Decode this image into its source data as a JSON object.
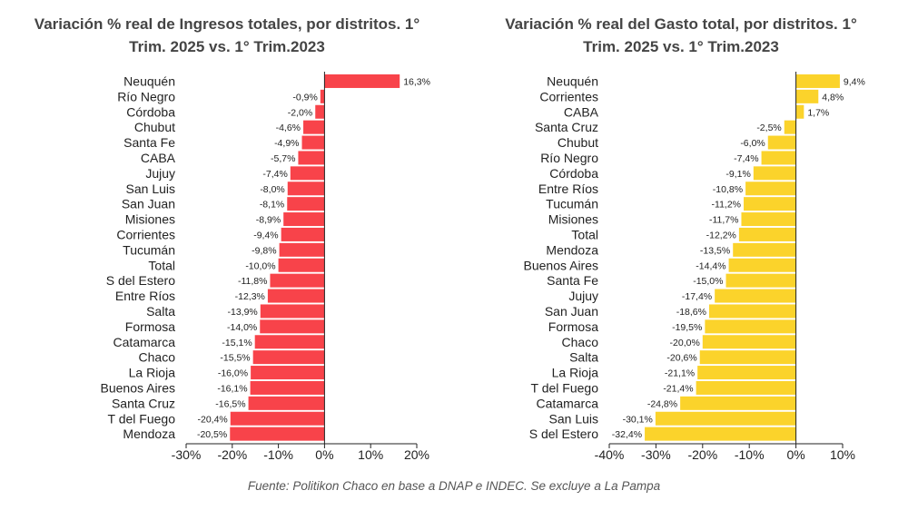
{
  "source": "Fuente: Politikon Chaco en base a DNAP e INDEC. Se excluye a La Pampa",
  "colors": {
    "left_bar": "#f8434a",
    "right_bar": "#fbd32b",
    "axis": "#222222",
    "grid": "#dddddd"
  },
  "chart_data": [
    {
      "type": "bar",
      "orientation": "horizontal",
      "title_line1": "Variación % real de Ingresos totales, por distritos. 1°",
      "title_line2": "Trim. 2025 vs. 1° Trim.2023",
      "xlim": [
        -30,
        20
      ],
      "xticks": [
        "-30%",
        "-20%",
        "-10%",
        "0%",
        "10%",
        "20%"
      ],
      "xtick_values": [
        -30,
        -20,
        -10,
        0,
        10,
        20
      ],
      "categories": [
        "Neuquén",
        "Río Negro",
        "Córdoba",
        "Chubut",
        "Santa Fe",
        "CABA",
        "Jujuy",
        "San Luis",
        "San Juan",
        "Misiones",
        "Corrientes",
        "Tucumán",
        "Total",
        "S del Estero",
        "Entre Ríos",
        "Salta",
        "Formosa",
        "Catamarca",
        "Chaco",
        "La Rioja",
        "Buenos Aires",
        "Santa Cruz",
        "T del Fuego",
        "Mendoza"
      ],
      "values": [
        16.3,
        -0.9,
        -2.0,
        -4.6,
        -4.9,
        -5.7,
        -7.4,
        -8.0,
        -8.1,
        -8.9,
        -9.4,
        -9.8,
        -10.0,
        -11.8,
        -12.3,
        -13.9,
        -14.0,
        -15.1,
        -15.5,
        -16.0,
        -16.1,
        -16.5,
        -20.4,
        -20.5
      ],
      "value_labels": [
        "16,3%",
        "-0,9%",
        "-2,0%",
        "-4,6%",
        "-4,9%",
        "-5,7%",
        "-7,4%",
        "-8,0%",
        "-8,1%",
        "-8,9%",
        "-9,4%",
        "-9,8%",
        "-10,0%",
        "-11,8%",
        "-12,3%",
        "-13,9%",
        "-14,0%",
        "-15,1%",
        "-15,5%",
        "-16,0%",
        "-16,1%",
        "-16,5%",
        "-20,4%",
        "-20,5%"
      ]
    },
    {
      "type": "bar",
      "orientation": "horizontal",
      "title_line1": "Variación % real del Gasto total, por distritos. 1°",
      "title_line2": "Trim. 2025 vs. 1° Trim.2023",
      "xlim": [
        -40,
        10
      ],
      "xticks": [
        "-40%",
        "-30%",
        "-20%",
        "-10%",
        "0%",
        "10%"
      ],
      "xtick_values": [
        -40,
        -30,
        -20,
        -10,
        0,
        10
      ],
      "categories": [
        "Neuquén",
        "Corrientes",
        "CABA",
        "Santa Cruz",
        "Chubut",
        "Río Negro",
        "Córdoba",
        "Entre Ríos",
        "Tucumán",
        "Misiones",
        "Total",
        "Mendoza",
        "Buenos Aires",
        "Santa Fe",
        "Jujuy",
        "San Juan",
        "Formosa",
        "Chaco",
        "Salta",
        "La Rioja",
        "T del Fuego",
        "Catamarca",
        "San Luis",
        "S del Estero"
      ],
      "values": [
        9.4,
        4.8,
        1.7,
        -2.5,
        -6.0,
        -7.4,
        -9.1,
        -10.8,
        -11.2,
        -11.7,
        -12.2,
        -13.5,
        -14.4,
        -15.0,
        -17.4,
        -18.6,
        -19.5,
        -20.0,
        -20.6,
        -21.1,
        -21.4,
        -24.8,
        -30.1,
        -32.4
      ],
      "value_labels": [
        "9,4%",
        "4,8%",
        "1,7%",
        "-2,5%",
        "-6,0%",
        "-7,4%",
        "-9,1%",
        "-10,8%",
        "-11,2%",
        "-11,7%",
        "-12,2%",
        "-13,5%",
        "-14,4%",
        "-15,0%",
        "-17,4%",
        "-18,6%",
        "-19,5%",
        "-20,0%",
        "-20,6%",
        "-21,1%",
        "-21,4%",
        "-24,8%",
        "-30,1%",
        "-32,4%"
      ]
    }
  ]
}
